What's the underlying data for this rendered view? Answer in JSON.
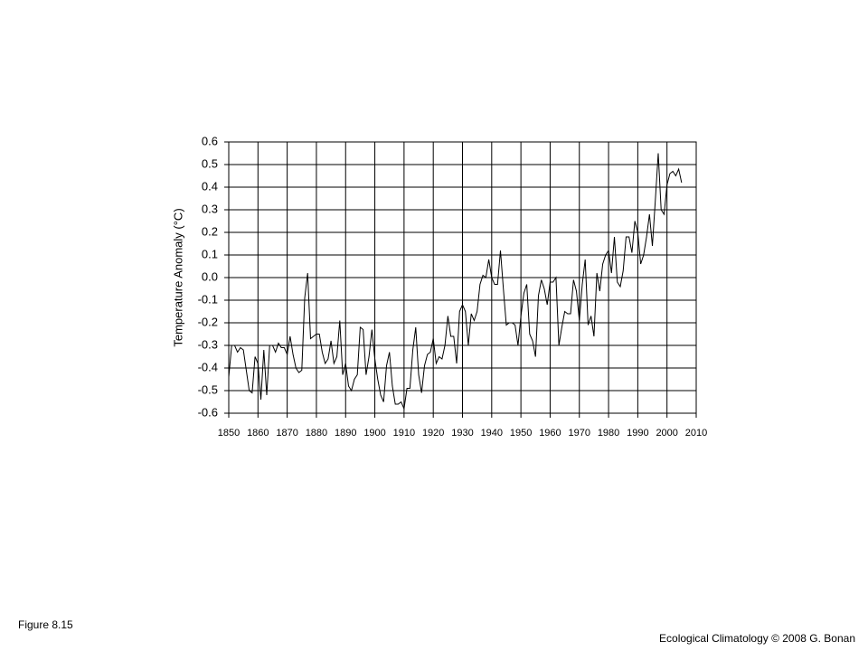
{
  "chart_data": {
    "type": "line",
    "ylabel": "Temperature Anomaly (°C)",
    "x": [
      1850,
      1851,
      1852,
      1853,
      1854,
      1855,
      1856,
      1857,
      1858,
      1859,
      1860,
      1861,
      1862,
      1863,
      1864,
      1865,
      1866,
      1867,
      1868,
      1869,
      1870,
      1871,
      1872,
      1873,
      1874,
      1875,
      1876,
      1877,
      1878,
      1879,
      1880,
      1881,
      1882,
      1883,
      1884,
      1885,
      1886,
      1887,
      1888,
      1889,
      1890,
      1891,
      1892,
      1893,
      1894,
      1895,
      1896,
      1897,
      1898,
      1899,
      1900,
      1901,
      1902,
      1903,
      1904,
      1905,
      1906,
      1907,
      1908,
      1909,
      1910,
      1911,
      1912,
      1913,
      1914,
      1915,
      1916,
      1917,
      1918,
      1919,
      1920,
      1921,
      1922,
      1923,
      1924,
      1925,
      1926,
      1927,
      1928,
      1929,
      1930,
      1931,
      1932,
      1933,
      1934,
      1935,
      1936,
      1937,
      1938,
      1939,
      1940,
      1941,
      1942,
      1943,
      1944,
      1945,
      1946,
      1947,
      1948,
      1949,
      1950,
      1951,
      1952,
      1953,
      1954,
      1955,
      1956,
      1957,
      1958,
      1959,
      1960,
      1961,
      1962,
      1963,
      1964,
      1965,
      1966,
      1967,
      1968,
      1969,
      1970,
      1971,
      1972,
      1973,
      1974,
      1975,
      1976,
      1977,
      1978,
      1979,
      1980,
      1981,
      1982,
      1983,
      1984,
      1985,
      1986,
      1987,
      1988,
      1989,
      1990,
      1991,
      1992,
      1993,
      1994,
      1995,
      1996,
      1997,
      1998,
      1999,
      2000,
      2001,
      2002,
      2003,
      2004,
      2005
    ],
    "series": [
      {
        "name": "Temperature anomaly",
        "color": "#000000",
        "values": [
          -0.44,
          -0.3,
          -0.3,
          -0.33,
          -0.31,
          -0.32,
          -0.41,
          -0.5,
          -0.51,
          -0.35,
          -0.38,
          -0.54,
          -0.32,
          -0.52,
          -0.3,
          -0.3,
          -0.33,
          -0.29,
          -0.31,
          -0.31,
          -0.34,
          -0.26,
          -0.34,
          -0.4,
          -0.42,
          -0.41,
          -0.09,
          0.02,
          -0.27,
          -0.26,
          -0.25,
          -0.25,
          -0.33,
          -0.38,
          -0.36,
          -0.28,
          -0.38,
          -0.35,
          -0.19,
          -0.43,
          -0.38,
          -0.48,
          -0.5,
          -0.45,
          -0.43,
          -0.22,
          -0.23,
          -0.43,
          -0.35,
          -0.23,
          -0.36,
          -0.45,
          -0.52,
          -0.55,
          -0.39,
          -0.33,
          -0.48,
          -0.56,
          -0.56,
          -0.55,
          -0.58,
          -0.49,
          -0.49,
          -0.32,
          -0.22,
          -0.43,
          -0.51,
          -0.39,
          -0.34,
          -0.33,
          -0.27,
          -0.38,
          -0.35,
          -0.36,
          -0.3,
          -0.17,
          -0.26,
          -0.26,
          -0.38,
          -0.15,
          -0.12,
          -0.15,
          -0.3,
          -0.16,
          -0.19,
          -0.15,
          -0.03,
          0.01,
          0.0,
          0.08,
          0.0,
          -0.03,
          -0.03,
          0.12,
          -0.05,
          -0.21,
          -0.2,
          -0.2,
          -0.21,
          -0.3,
          -0.17,
          -0.07,
          -0.03,
          -0.25,
          -0.28,
          -0.35,
          -0.08,
          -0.01,
          -0.05,
          -0.12,
          -0.02,
          -0.02,
          0.0,
          -0.3,
          -0.22,
          -0.15,
          -0.16,
          -0.16,
          -0.01,
          -0.06,
          -0.19,
          -0.03,
          0.08,
          -0.21,
          -0.17,
          -0.26,
          0.02,
          -0.06,
          0.06,
          0.1,
          0.12,
          0.02,
          0.18,
          -0.02,
          -0.04,
          0.03,
          0.18,
          0.18,
          0.11,
          0.25,
          0.2,
          0.06,
          0.1,
          0.18,
          0.28,
          0.14,
          0.34,
          0.55,
          0.3,
          0.28,
          0.41,
          0.46,
          0.47,
          0.45,
          0.48,
          0.42
        ]
      }
    ],
    "xlim": [
      1850,
      2010
    ],
    "xticks": [
      1850,
      1860,
      1870,
      1880,
      1890,
      1900,
      1910,
      1920,
      1930,
      1940,
      1950,
      1960,
      1970,
      1980,
      1990,
      2000,
      2010
    ],
    "ylim": [
      -0.6,
      0.6
    ],
    "yticks": [
      -0.6,
      -0.5,
      -0.4,
      -0.3,
      -0.2,
      -0.1,
      {
        "value": 0,
        "label": "0.0"
      },
      0.1,
      0.2,
      0.3,
      0.4,
      0.5,
      0.6
    ],
    "grid": true
  },
  "footer": {
    "figure": "Figure 8.15",
    "credit": "Ecological Climatology © 2008 G. Bonan"
  }
}
